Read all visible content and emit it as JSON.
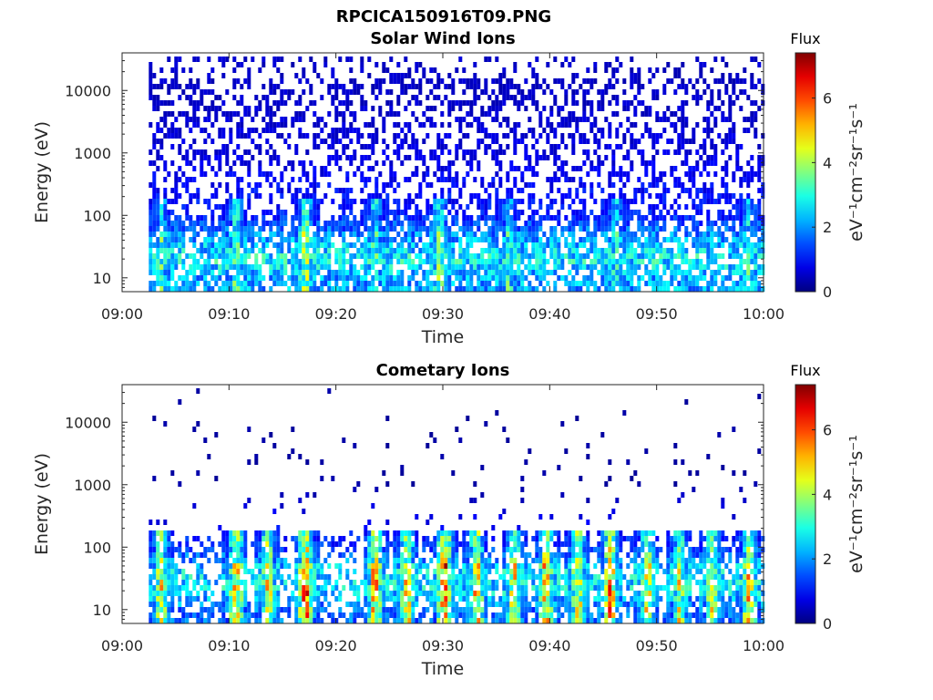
{
  "figure_title": "RPCICA150916T09.PNG",
  "chart_data": [
    {
      "type": "heatmap",
      "title": "Solar Wind Ions",
      "xlabel": "Time",
      "ylabel": "Energy (eV)",
      "x_ticks": [
        "09:00",
        "09:10",
        "09:20",
        "09:30",
        "09:40",
        "09:50",
        "10:00"
      ],
      "x_range_minutes": [
        0,
        60
      ],
      "y_scale": "log",
      "y_range": [
        6,
        40000
      ],
      "y_ticks": [
        {
          "value": 10,
          "label": "10"
        },
        {
          "value": 100,
          "label": "100"
        },
        {
          "value": 1000,
          "label": "1000"
        },
        {
          "value": 10000,
          "label": "10000"
        }
      ],
      "data_start_minute": 2.5,
      "colorbar": {
        "title": "Flux",
        "label": "eV⁻¹cm⁻²sr⁻¹s⁻¹",
        "range": [
          0,
          7.4
        ],
        "ticks": [
          "0",
          "2",
          "4",
          "6"
        ],
        "colormap": "jet"
      },
      "intensity_profile": {
        "energy_eV": [
          10,
          20,
          50,
          100,
          1000,
          10000
        ],
        "typical_flux": [
          2.5,
          3.2,
          2.2,
          1.3,
          0.8,
          0.6
        ]
      },
      "bursts": [
        {
          "minute": 3.5,
          "flux": 3.8
        },
        {
          "minute": 10.5,
          "flux": 4.2
        },
        {
          "minute": 17.0,
          "flux": 5.0
        },
        {
          "minute": 23.5,
          "flux": 4.0
        },
        {
          "minute": 29.5,
          "flux": 4.4
        },
        {
          "minute": 36.0,
          "flux": 3.8
        },
        {
          "minute": 46.0,
          "flux": 3.8
        },
        {
          "minute": 58.5,
          "flux": 3.8
        }
      ]
    },
    {
      "type": "heatmap",
      "title": "Cometary Ions",
      "xlabel": "Time",
      "ylabel": "Energy (eV)",
      "x_ticks": [
        "09:00",
        "09:10",
        "09:20",
        "09:30",
        "09:40",
        "09:50",
        "10:00"
      ],
      "x_range_minutes": [
        0,
        60
      ],
      "y_scale": "log",
      "y_range": [
        6,
        40000
      ],
      "y_ticks": [
        {
          "value": 10,
          "label": "10"
        },
        {
          "value": 100,
          "label": "100"
        },
        {
          "value": 1000,
          "label": "1000"
        },
        {
          "value": 10000,
          "label": "10000"
        }
      ],
      "data_start_minute": 2.5,
      "colorbar": {
        "title": "Flux",
        "label": "eV⁻¹cm⁻²sr⁻¹s⁻¹",
        "range": [
          0,
          7.4
        ],
        "ticks": [
          "0",
          "2",
          "4",
          "6"
        ],
        "colormap": "jet"
      },
      "intensity_profile": {
        "energy_eV": [
          10,
          20,
          40,
          100,
          1000,
          10000
        ],
        "typical_flux": [
          2.0,
          3.0,
          3.0,
          1.5,
          0.3,
          0.3
        ]
      },
      "bursts": [
        {
          "minute": 3.5,
          "flux": 5.5
        },
        {
          "minute": 10.5,
          "flux": 6.3
        },
        {
          "minute": 13.5,
          "flux": 5.6
        },
        {
          "minute": 17.0,
          "flux": 7.0
        },
        {
          "minute": 23.5,
          "flux": 6.2
        },
        {
          "minute": 26.5,
          "flux": 5.8
        },
        {
          "minute": 30.0,
          "flux": 7.0
        },
        {
          "minute": 33.0,
          "flux": 6.0
        },
        {
          "minute": 36.5,
          "flux": 5.6
        },
        {
          "minute": 39.5,
          "flux": 6.3
        },
        {
          "minute": 42.5,
          "flux": 5.6
        },
        {
          "minute": 45.5,
          "flux": 6.3
        },
        {
          "minute": 49.0,
          "flux": 5.6
        },
        {
          "minute": 52.0,
          "flux": 5.2
        },
        {
          "minute": 55.0,
          "flux": 5.2
        },
        {
          "minute": 58.5,
          "flux": 6.0
        }
      ]
    }
  ]
}
